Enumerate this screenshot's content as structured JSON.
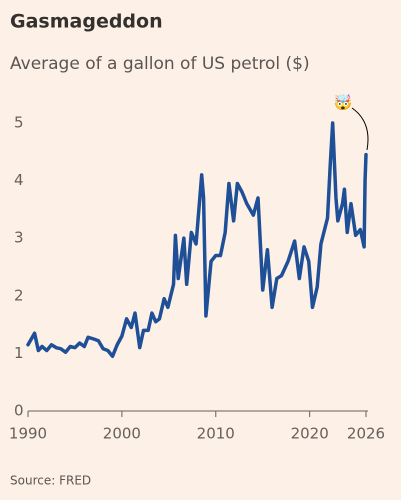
{
  "chart_data": {
    "type": "line",
    "title": "Gasmageddon",
    "subtitle": "Average of a gallon of US petrol ($)",
    "source": "Source: FRED",
    "annotation": "🤯",
    "x": [
      1990.0,
      1990.7,
      1991.1,
      1991.5,
      1992.0,
      1992.5,
      1993.0,
      1993.5,
      1994.0,
      1994.5,
      1995.0,
      1995.5,
      1996.0,
      1996.4,
      1997.0,
      1997.5,
      1998.0,
      1998.5,
      1999.0,
      1999.5,
      2000.0,
      2000.5,
      2001.0,
      2001.4,
      2001.9,
      2002.3,
      2002.8,
      2003.2,
      2003.6,
      2004.0,
      2004.5,
      2004.9,
      2005.5,
      2005.7,
      2006.0,
      2006.6,
      2006.9,
      2007.4,
      2007.9,
      2008.5,
      2008.7,
      2008.95,
      2009.5,
      2010.0,
      2010.5,
      2011.0,
      2011.4,
      2011.9,
      2012.3,
      2012.8,
      2013.3,
      2014.0,
      2014.5,
      2015.0,
      2015.5,
      2016.0,
      2016.5,
      2017.0,
      2017.7,
      2018.4,
      2018.9,
      2019.4,
      2019.9,
      2020.3,
      2020.8,
      2021.2,
      2021.9,
      2022.2,
      2022.45,
      2022.8,
      2023.0,
      2023.5,
      2023.7,
      2024.0,
      2024.4,
      2024.9,
      2025.4,
      2025.8,
      2025.9,
      2026.0
    ],
    "values": [
      1.15,
      1.35,
      1.05,
      1.12,
      1.05,
      1.15,
      1.1,
      1.08,
      1.02,
      1.12,
      1.1,
      1.18,
      1.12,
      1.28,
      1.25,
      1.22,
      1.08,
      1.05,
      0.95,
      1.15,
      1.3,
      1.6,
      1.45,
      1.7,
      1.1,
      1.4,
      1.4,
      1.7,
      1.55,
      1.6,
      1.95,
      1.8,
      2.2,
      3.05,
      2.3,
      3.0,
      2.2,
      3.1,
      2.9,
      4.1,
      3.7,
      1.65,
      2.6,
      2.7,
      2.7,
      3.1,
      3.95,
      3.3,
      3.95,
      3.8,
      3.6,
      3.4,
      3.7,
      2.1,
      2.8,
      1.8,
      2.3,
      2.35,
      2.6,
      2.95,
      2.3,
      2.85,
      2.6,
      1.8,
      2.15,
      2.9,
      3.35,
      4.3,
      5.0,
      3.7,
      3.3,
      3.6,
      3.85,
      3.1,
      3.6,
      3.05,
      3.15,
      2.85,
      4.0,
      4.45
    ],
    "color": "#1f4f96",
    "xlim": [
      1990,
      2026
    ],
    "xticks": [
      1990,
      2000,
      2010,
      2020,
      2026
    ],
    "ylim": [
      0,
      5
    ],
    "yticks": [
      0,
      1,
      2,
      3,
      4,
      5
    ],
    "grid": false
  }
}
